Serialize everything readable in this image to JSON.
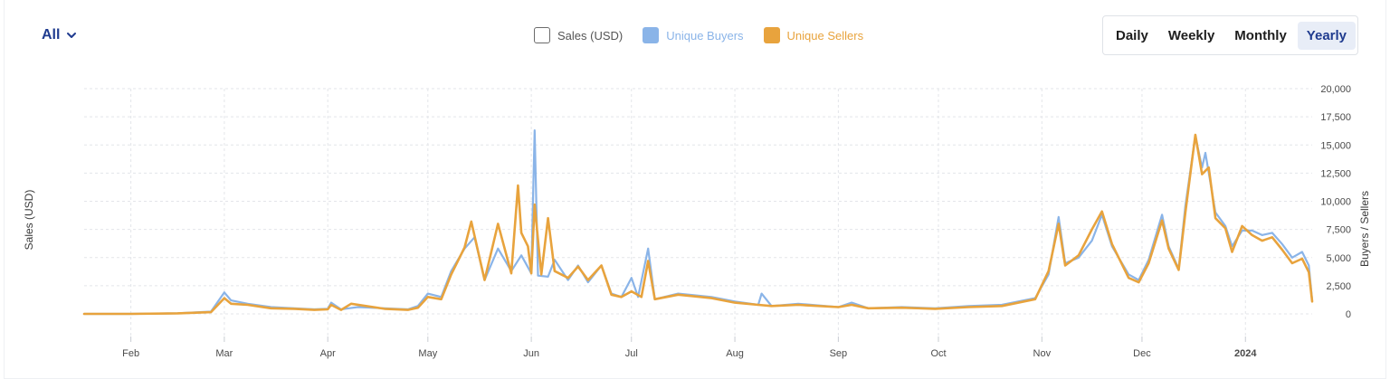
{
  "filter": {
    "label": "All"
  },
  "legend": [
    {
      "label": "Sales (USD)",
      "color": "#ffffff",
      "enabled": false
    },
    {
      "label": "Unique Buyers",
      "color": "#8ab4e8",
      "enabled": true
    },
    {
      "label": "Unique Sellers",
      "color": "#e8a33d",
      "enabled": true
    }
  ],
  "range_buttons": [
    {
      "label": "Daily",
      "active": false
    },
    {
      "label": "Weekly",
      "active": false
    },
    {
      "label": "Monthly",
      "active": false
    },
    {
      "label": "Yearly",
      "active": true
    }
  ],
  "colors": {
    "buyers": "#8ab4e8",
    "sellers": "#e8a33d",
    "accent": "#1f3b8f"
  },
  "chart_data": {
    "type": "line",
    "left_axis_label": "Sales (USD)",
    "right_axis_label": "Buyers / Sellers",
    "ylim": [
      0,
      20000
    ],
    "y_ticks": [
      "20,000",
      "17,500",
      "15,000",
      "12,500",
      "10,000",
      "7,500",
      "5,000",
      "2,500",
      "0"
    ],
    "x_ticks": [
      "Feb",
      "Mar",
      "Apr",
      "May",
      "Jun",
      "Jul",
      "Aug",
      "Sep",
      "Oct",
      "Nov",
      "Dec",
      "2024"
    ],
    "grid": true,
    "legend_position": "top-center",
    "series": [
      {
        "name": "Unique Buyers",
        "points": [
          [
            "2023-01-18",
            0
          ],
          [
            "2023-02-01",
            0
          ],
          [
            "2023-02-15",
            50
          ],
          [
            "2023-02-25",
            200
          ],
          [
            "2023-03-01",
            1900
          ],
          [
            "2023-03-03",
            1200
          ],
          [
            "2023-03-08",
            900
          ],
          [
            "2023-03-15",
            600
          ],
          [
            "2023-03-22",
            500
          ],
          [
            "2023-03-28",
            400
          ],
          [
            "2023-04-01",
            450
          ],
          [
            "2023-04-02",
            1000
          ],
          [
            "2023-04-05",
            400
          ],
          [
            "2023-04-10",
            600
          ],
          [
            "2023-04-18",
            500
          ],
          [
            "2023-04-25",
            400
          ],
          [
            "2023-04-28",
            700
          ],
          [
            "2023-05-01",
            1800
          ],
          [
            "2023-05-05",
            1500
          ],
          [
            "2023-05-08",
            3800
          ],
          [
            "2023-05-12",
            5800
          ],
          [
            "2023-05-15",
            6800
          ],
          [
            "2023-05-18",
            3000
          ],
          [
            "2023-05-22",
            5800
          ],
          [
            "2023-05-26",
            3800
          ],
          [
            "2023-05-29",
            5200
          ],
          [
            "2023-06-01",
            3600
          ],
          [
            "2023-06-02",
            16300
          ],
          [
            "2023-06-03",
            3400
          ],
          [
            "2023-06-06",
            3300
          ],
          [
            "2023-06-08",
            4800
          ],
          [
            "2023-06-12",
            3000
          ],
          [
            "2023-06-15",
            4300
          ],
          [
            "2023-06-18",
            2800
          ],
          [
            "2023-06-22",
            4300
          ],
          [
            "2023-06-25",
            1800
          ],
          [
            "2023-06-28",
            1500
          ],
          [
            "2023-07-01",
            3200
          ],
          [
            "2023-07-03",
            1500
          ],
          [
            "2023-07-06",
            5800
          ],
          [
            "2023-07-08",
            1300
          ],
          [
            "2023-07-15",
            1800
          ],
          [
            "2023-07-25",
            1500
          ],
          [
            "2023-08-01",
            1100
          ],
          [
            "2023-08-08",
            800
          ],
          [
            "2023-08-09",
            1800
          ],
          [
            "2023-08-12",
            700
          ],
          [
            "2023-08-20",
            900
          ],
          [
            "2023-09-01",
            600
          ],
          [
            "2023-09-05",
            1000
          ],
          [
            "2023-09-10",
            500
          ],
          [
            "2023-09-20",
            600
          ],
          [
            "2023-09-30",
            500
          ],
          [
            "2023-10-10",
            700
          ],
          [
            "2023-10-20",
            800
          ],
          [
            "2023-10-30",
            1400
          ],
          [
            "2023-11-03",
            3500
          ],
          [
            "2023-11-06",
            8600
          ],
          [
            "2023-11-08",
            4500
          ],
          [
            "2023-11-12",
            5000
          ],
          [
            "2023-11-16",
            6500
          ],
          [
            "2023-11-19",
            8800
          ],
          [
            "2023-11-22",
            6000
          ],
          [
            "2023-11-27",
            3500
          ],
          [
            "2023-11-30",
            3000
          ],
          [
            "2023-12-03",
            4800
          ],
          [
            "2023-12-07",
            8800
          ],
          [
            "2023-12-09",
            6000
          ],
          [
            "2023-12-12",
            4000
          ],
          [
            "2023-12-14",
            9600
          ],
          [
            "2023-12-17",
            15800
          ],
          [
            "2023-12-19",
            13000
          ],
          [
            "2023-12-20",
            14300
          ],
          [
            "2023-12-23",
            9000
          ],
          [
            "2023-12-26",
            7800
          ],
          [
            "2023-12-28",
            6000
          ],
          [
            "2023-12-31",
            7400
          ],
          [
            "2024-01-03",
            7400
          ],
          [
            "2024-01-06",
            7000
          ],
          [
            "2024-01-09",
            7200
          ],
          [
            "2024-01-12",
            6200
          ],
          [
            "2024-01-15",
            5000
          ],
          [
            "2024-01-18",
            5500
          ],
          [
            "2024-01-20",
            4300
          ],
          [
            "2024-01-21",
            1200
          ]
        ]
      },
      {
        "name": "Unique Sellers",
        "points": [
          [
            "2023-01-18",
            0
          ],
          [
            "2023-02-01",
            0
          ],
          [
            "2023-02-15",
            50
          ],
          [
            "2023-02-25",
            150
          ],
          [
            "2023-03-01",
            1400
          ],
          [
            "2023-03-03",
            900
          ],
          [
            "2023-03-08",
            800
          ],
          [
            "2023-03-15",
            500
          ],
          [
            "2023-03-22",
            450
          ],
          [
            "2023-03-28",
            350
          ],
          [
            "2023-04-01",
            400
          ],
          [
            "2023-04-02",
            800
          ],
          [
            "2023-04-05",
            350
          ],
          [
            "2023-04-08",
            900
          ],
          [
            "2023-04-18",
            450
          ],
          [
            "2023-04-25",
            350
          ],
          [
            "2023-04-28",
            550
          ],
          [
            "2023-05-01",
            1500
          ],
          [
            "2023-05-05",
            1300
          ],
          [
            "2023-05-08",
            3500
          ],
          [
            "2023-05-12",
            5900
          ],
          [
            "2023-05-14",
            8200
          ],
          [
            "2023-05-18",
            3000
          ],
          [
            "2023-05-22",
            8000
          ],
          [
            "2023-05-26",
            3600
          ],
          [
            "2023-05-28",
            11400
          ],
          [
            "2023-05-29",
            7200
          ],
          [
            "2023-05-31",
            6000
          ],
          [
            "2023-06-01",
            3600
          ],
          [
            "2023-06-02",
            9700
          ],
          [
            "2023-06-04",
            3500
          ],
          [
            "2023-06-06",
            8500
          ],
          [
            "2023-06-08",
            3800
          ],
          [
            "2023-06-12",
            3200
          ],
          [
            "2023-06-15",
            4200
          ],
          [
            "2023-06-18",
            3000
          ],
          [
            "2023-06-22",
            4300
          ],
          [
            "2023-06-25",
            1700
          ],
          [
            "2023-06-28",
            1500
          ],
          [
            "2023-07-01",
            2000
          ],
          [
            "2023-07-04",
            1500
          ],
          [
            "2023-07-06",
            4700
          ],
          [
            "2023-07-08",
            1300
          ],
          [
            "2023-07-15",
            1700
          ],
          [
            "2023-07-25",
            1400
          ],
          [
            "2023-08-01",
            1000
          ],
          [
            "2023-08-08",
            800
          ],
          [
            "2023-08-12",
            700
          ],
          [
            "2023-08-20",
            800
          ],
          [
            "2023-09-01",
            600
          ],
          [
            "2023-09-05",
            800
          ],
          [
            "2023-09-10",
            500
          ],
          [
            "2023-09-20",
            550
          ],
          [
            "2023-09-30",
            450
          ],
          [
            "2023-10-10",
            600
          ],
          [
            "2023-10-20",
            700
          ],
          [
            "2023-10-30",
            1300
          ],
          [
            "2023-11-03",
            3800
          ],
          [
            "2023-11-06",
            8000
          ],
          [
            "2023-11-08",
            4300
          ],
          [
            "2023-11-12",
            5200
          ],
          [
            "2023-11-16",
            7500
          ],
          [
            "2023-11-19",
            9100
          ],
          [
            "2023-11-22",
            6200
          ],
          [
            "2023-11-27",
            3200
          ],
          [
            "2023-11-30",
            2800
          ],
          [
            "2023-12-03",
            4500
          ],
          [
            "2023-12-07",
            8300
          ],
          [
            "2023-12-09",
            5800
          ],
          [
            "2023-12-12",
            3900
          ],
          [
            "2023-12-14",
            9000
          ],
          [
            "2023-12-17",
            15900
          ],
          [
            "2023-12-19",
            12400
          ],
          [
            "2023-12-21",
            13000
          ],
          [
            "2023-12-23",
            8500
          ],
          [
            "2023-12-26",
            7600
          ],
          [
            "2023-12-28",
            5500
          ],
          [
            "2023-12-31",
            7800
          ],
          [
            "2024-01-03",
            7000
          ],
          [
            "2024-01-06",
            6500
          ],
          [
            "2024-01-09",
            6800
          ],
          [
            "2024-01-12",
            5700
          ],
          [
            "2024-01-15",
            4500
          ],
          [
            "2024-01-18",
            4900
          ],
          [
            "2024-01-20",
            3700
          ],
          [
            "2024-01-21",
            1100
          ]
        ]
      }
    ]
  }
}
